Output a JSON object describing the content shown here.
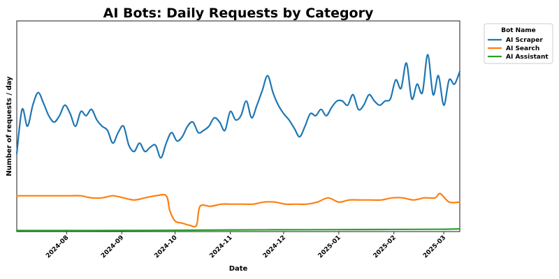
{
  "chart_data": {
    "type": "line",
    "title": "AI Bots: Daily Requests by Category",
    "xlabel": "Date",
    "ylabel": "Number of requests / day",
    "y_ticks_shown": false,
    "x_tick_labels": [
      "2024-08",
      "2024-09",
      "2024-10",
      "2024-11",
      "2024-12",
      "2025-01",
      "2025-02",
      "2025-03"
    ],
    "x_ticks": [
      "2024-08-01",
      "2024-09-01",
      "2024-10-01",
      "2024-11-01",
      "2024-12-01",
      "2025-01-01",
      "2025-02-01",
      "2025-03-01"
    ],
    "x_range": [
      "2024-07-04",
      "2025-03-10"
    ],
    "y_range_relative": [
      0,
      100
    ],
    "legend": {
      "title": "Bot Name",
      "placement": "outside-top-right"
    },
    "grid": false,
    "series": [
      {
        "name": "AI Scraper",
        "color": "#1f77b4",
        "points": [
          [
            "2024-07-04",
            37
          ],
          [
            "2024-07-07",
            58
          ],
          [
            "2024-07-10",
            50
          ],
          [
            "2024-07-13",
            60
          ],
          [
            "2024-07-16",
            66
          ],
          [
            "2024-07-19",
            61
          ],
          [
            "2024-07-22",
            55
          ],
          [
            "2024-07-25",
            52
          ],
          [
            "2024-07-28",
            55
          ],
          [
            "2024-07-31",
            60
          ],
          [
            "2024-08-03",
            56
          ],
          [
            "2024-08-06",
            50
          ],
          [
            "2024-08-09",
            57
          ],
          [
            "2024-08-12",
            55
          ],
          [
            "2024-08-15",
            58
          ],
          [
            "2024-08-18",
            53
          ],
          [
            "2024-08-21",
            50
          ],
          [
            "2024-08-24",
            48
          ],
          [
            "2024-08-27",
            42
          ],
          [
            "2024-08-30",
            47
          ],
          [
            "2024-09-02",
            50
          ],
          [
            "2024-09-05",
            41
          ],
          [
            "2024-09-08",
            38
          ],
          [
            "2024-09-11",
            42
          ],
          [
            "2024-09-14",
            38
          ],
          [
            "2024-09-17",
            40
          ],
          [
            "2024-09-20",
            41
          ],
          [
            "2024-09-23",
            35
          ],
          [
            "2024-09-26",
            42
          ],
          [
            "2024-09-29",
            47
          ],
          [
            "2024-10-02",
            43
          ],
          [
            "2024-10-05",
            45
          ],
          [
            "2024-10-08",
            50
          ],
          [
            "2024-10-11",
            52
          ],
          [
            "2024-10-14",
            47
          ],
          [
            "2024-10-17",
            48
          ],
          [
            "2024-10-20",
            50
          ],
          [
            "2024-10-23",
            54
          ],
          [
            "2024-10-26",
            52
          ],
          [
            "2024-10-29",
            48
          ],
          [
            "2024-11-01",
            57
          ],
          [
            "2024-11-04",
            53
          ],
          [
            "2024-11-07",
            55
          ],
          [
            "2024-11-10",
            62
          ],
          [
            "2024-11-13",
            54
          ],
          [
            "2024-11-16",
            60
          ],
          [
            "2024-11-19",
            67
          ],
          [
            "2024-11-22",
            74
          ],
          [
            "2024-11-25",
            66
          ],
          [
            "2024-11-28",
            60
          ],
          [
            "2024-12-01",
            56
          ],
          [
            "2024-12-04",
            53
          ],
          [
            "2024-12-07",
            49
          ],
          [
            "2024-12-10",
            45
          ],
          [
            "2024-12-13",
            50
          ],
          [
            "2024-12-16",
            56
          ],
          [
            "2024-12-19",
            55
          ],
          [
            "2024-12-22",
            58
          ],
          [
            "2024-12-25",
            55
          ],
          [
            "2024-12-28",
            59
          ],
          [
            "2024-12-31",
            62
          ],
          [
            "2025-01-03",
            62
          ],
          [
            "2025-01-06",
            60
          ],
          [
            "2025-01-09",
            65
          ],
          [
            "2025-01-12",
            58
          ],
          [
            "2025-01-15",
            60
          ],
          [
            "2025-01-18",
            65
          ],
          [
            "2025-01-21",
            62
          ],
          [
            "2025-01-24",
            60
          ],
          [
            "2025-01-27",
            62
          ],
          [
            "2025-01-30",
            63
          ],
          [
            "2025-02-02",
            72
          ],
          [
            "2025-02-05",
            68
          ],
          [
            "2025-02-08",
            80
          ],
          [
            "2025-02-11",
            63
          ],
          [
            "2025-02-14",
            70
          ],
          [
            "2025-02-17",
            66
          ],
          [
            "2025-02-20",
            84
          ],
          [
            "2025-02-23",
            65
          ],
          [
            "2025-02-26",
            74
          ],
          [
            "2025-03-01",
            60
          ],
          [
            "2025-03-04",
            72
          ],
          [
            "2025-03-07",
            70
          ],
          [
            "2025-03-10",
            76
          ]
        ]
      },
      {
        "name": "AI Search",
        "color": "#ff7f0e",
        "points": [
          [
            "2024-07-04",
            17
          ],
          [
            "2024-07-10",
            17
          ],
          [
            "2024-07-16",
            17
          ],
          [
            "2024-07-22",
            17
          ],
          [
            "2024-07-28",
            17
          ],
          [
            "2024-08-03",
            17
          ],
          [
            "2024-08-09",
            17
          ],
          [
            "2024-08-15",
            16
          ],
          [
            "2024-08-21",
            16
          ],
          [
            "2024-08-27",
            17
          ],
          [
            "2024-09-02",
            16
          ],
          [
            "2024-09-08",
            15
          ],
          [
            "2024-09-14",
            16
          ],
          [
            "2024-09-20",
            17
          ],
          [
            "2024-09-26",
            17
          ],
          [
            "2024-09-28",
            10
          ],
          [
            "2024-10-01",
            5
          ],
          [
            "2024-10-05",
            4
          ],
          [
            "2024-10-09",
            3
          ],
          [
            "2024-10-13",
            3
          ],
          [
            "2024-10-15",
            12
          ],
          [
            "2024-10-21",
            12
          ],
          [
            "2024-10-27",
            13
          ],
          [
            "2024-11-02",
            13
          ],
          [
            "2024-11-08",
            13
          ],
          [
            "2024-11-14",
            13
          ],
          [
            "2024-11-20",
            14
          ],
          [
            "2024-11-26",
            14
          ],
          [
            "2024-12-02",
            13
          ],
          [
            "2024-12-08",
            13
          ],
          [
            "2024-12-14",
            13
          ],
          [
            "2024-12-20",
            14
          ],
          [
            "2024-12-26",
            16
          ],
          [
            "2025-01-01",
            14
          ],
          [
            "2025-01-07",
            15
          ],
          [
            "2025-01-13",
            15
          ],
          [
            "2025-01-19",
            15
          ],
          [
            "2025-01-25",
            15
          ],
          [
            "2025-01-31",
            16
          ],
          [
            "2025-02-06",
            16
          ],
          [
            "2025-02-12",
            15
          ],
          [
            "2025-02-18",
            16
          ],
          [
            "2025-02-24",
            16
          ],
          [
            "2025-02-27",
            18
          ],
          [
            "2025-03-04",
            14
          ],
          [
            "2025-03-10",
            14
          ]
        ]
      },
      {
        "name": "AI Assistant",
        "color": "#2ca02c",
        "points": [
          [
            "2024-07-04",
            0.5
          ],
          [
            "2024-08-15",
            0.5
          ],
          [
            "2024-09-25",
            0.6
          ],
          [
            "2024-11-05",
            0.8
          ],
          [
            "2024-12-15",
            0.9
          ],
          [
            "2025-01-25",
            1.0
          ],
          [
            "2025-02-27",
            1.1
          ],
          [
            "2025-03-10",
            1.3
          ]
        ]
      }
    ]
  }
}
